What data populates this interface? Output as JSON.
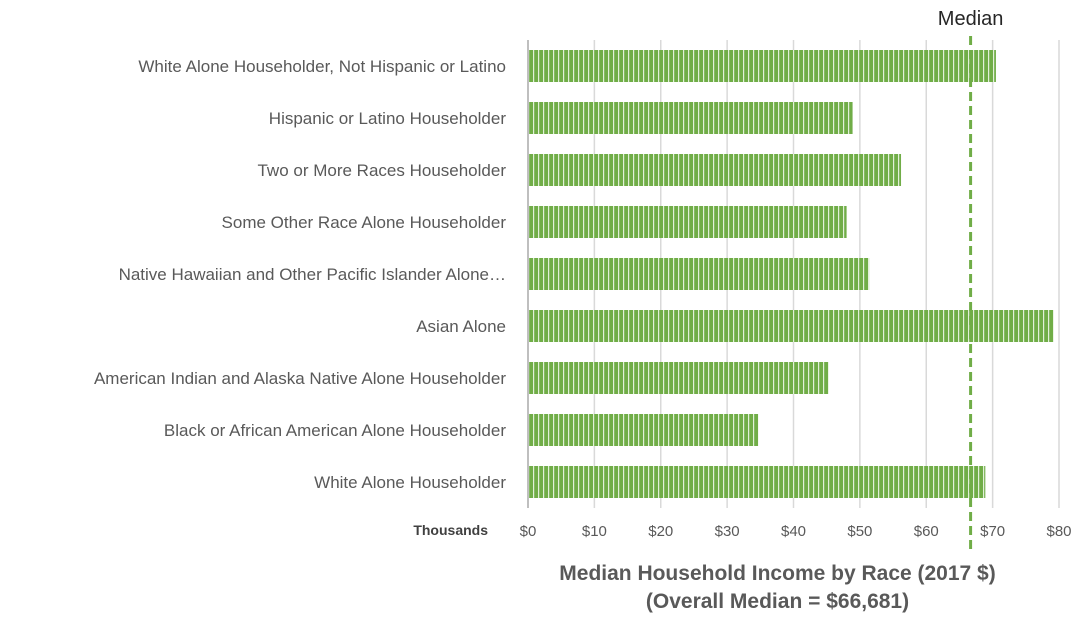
{
  "chart_data": {
    "type": "bar",
    "orientation": "horizontal",
    "categories": [
      "White Alone Householder, Not Hispanic or Latino",
      "Hispanic or Latino Householder",
      "Two or More Races Householder",
      "Some Other Race Alone Householder",
      "Native Hawaiian and Other Pacific Islander Alone…",
      "Asian Alone",
      "American Indian and Alaska Native Alone Householder",
      "Black or African American Alone Householder",
      "White Alone Householder"
    ],
    "values": [
      70.5,
      48.9,
      56.2,
      48.0,
      51.4,
      79.2,
      45.3,
      34.7,
      68.9
    ],
    "xlim": [
      0,
      80
    ],
    "xticks": [
      0,
      10,
      20,
      30,
      40,
      50,
      60,
      70,
      80
    ],
    "xtick_labels": [
      "$0",
      "$10",
      "$20",
      "$30",
      "$40",
      "$50",
      "$60",
      "$70",
      "$80"
    ],
    "units_label": "Thousands",
    "title_lines": [
      "Median Household Income by Race (2017 $)",
      "(Overall Median = $66,681)"
    ],
    "reference_line": {
      "label": "Median",
      "value": 66.681,
      "style": "dashed"
    },
    "grid": true,
    "bar_color": "#70ad47",
    "bar_stripe_color": "#e2f0d9"
  }
}
